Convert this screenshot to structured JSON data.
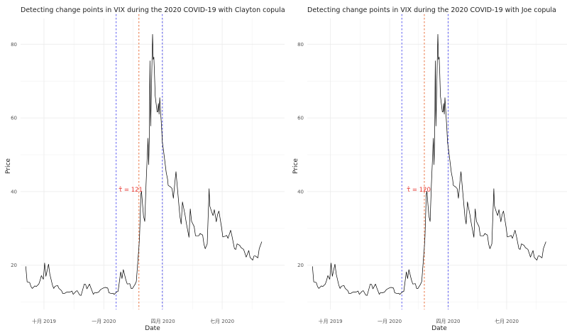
{
  "colors": {
    "series": "#000000",
    "change_point_blue": "#4a4af0",
    "change_point_orange": "#e8642c",
    "annotation": "#e6352f",
    "grid": "#ebebeb"
  },
  "chart_data": [
    {
      "type": "line",
      "title": "Detecting change points in VIX during the 2020 COVID-19 with Clayton copula",
      "xlabel": "Date",
      "ylabel": "Price",
      "annotation": "τ̂ = 121",
      "ylim": [
        8,
        87
      ],
      "y_ticks": [
        20,
        40,
        60,
        80
      ],
      "x_ticks": [
        {
          "date": "2019-10-01",
          "label": "十月 2019"
        },
        {
          "date": "2020-01-01",
          "label": "一月 2020"
        },
        {
          "date": "2020-04-01",
          "label": "四月 2020"
        },
        {
          "date": "2020-07-01",
          "label": "七月 2020"
        }
      ],
      "xlim": [
        "2019-08-26",
        "2020-10-05"
      ],
      "change_points": [
        {
          "date": "2020-01-20",
          "style": "blue"
        },
        {
          "date": "2020-02-24",
          "style": "orange"
        },
        {
          "date": "2020-03-31",
          "style": "blue"
        }
      ],
      "series_ref": "vix",
      "grid": true
    },
    {
      "type": "line",
      "title": "Detecting change points in VIX during the 2020 COVID-19 with Joe copula",
      "xlabel": "Date",
      "ylabel": "Price",
      "annotation": "τ̂ = 120",
      "ylim": [
        8,
        87
      ],
      "y_ticks": [
        20,
        40,
        60,
        80
      ],
      "x_ticks": [
        {
          "date": "2019-10-01",
          "label": "十月 2019"
        },
        {
          "date": "2020-01-01",
          "label": "一月 2020"
        },
        {
          "date": "2020-04-01",
          "label": "四月 2020"
        },
        {
          "date": "2020-07-01",
          "label": "七月 2020"
        }
      ],
      "xlim": [
        "2019-08-26",
        "2020-10-05"
      ],
      "change_points": [
        {
          "date": "2020-01-20",
          "style": "blue"
        },
        {
          "date": "2020-02-24",
          "style": "orange"
        },
        {
          "date": "2020-04-01",
          "style": "blue"
        }
      ],
      "series_ref": "vix",
      "grid": true
    }
  ],
  "vix": [
    [
      "2019-09-03",
      19.7
    ],
    [
      "2019-09-05",
      15.5
    ],
    [
      "2019-09-09",
      15.3
    ],
    [
      "2019-09-11",
      14.2
    ],
    [
      "2019-09-13",
      13.7
    ],
    [
      "2019-09-17",
      14.4
    ],
    [
      "2019-09-19",
      14.2
    ],
    [
      "2019-09-23",
      14.9
    ],
    [
      "2019-09-25",
      15.9
    ],
    [
      "2019-09-27",
      17.2
    ],
    [
      "2019-09-30",
      16.2
    ],
    [
      "2019-10-02",
      20.6
    ],
    [
      "2019-10-04",
      17.0
    ],
    [
      "2019-10-08",
      20.3
    ],
    [
      "2019-10-10",
      17.6
    ],
    [
      "2019-10-14",
      14.6
    ],
    [
      "2019-10-16",
      13.7
    ],
    [
      "2019-10-18",
      14.3
    ],
    [
      "2019-10-22",
      14.5
    ],
    [
      "2019-10-24",
      13.7
    ],
    [
      "2019-10-28",
      13.1
    ],
    [
      "2019-10-30",
      12.3
    ],
    [
      "2019-11-01",
      12.3
    ],
    [
      "2019-11-05",
      12.7
    ],
    [
      "2019-11-07",
      12.7
    ],
    [
      "2019-11-11",
      12.8
    ],
    [
      "2019-11-13",
      13.0
    ],
    [
      "2019-11-15",
      12.1
    ],
    [
      "2019-11-19",
      12.9
    ],
    [
      "2019-11-21",
      13.1
    ],
    [
      "2019-11-25",
      11.9
    ],
    [
      "2019-11-27",
      11.8
    ],
    [
      "2019-12-02",
      14.9
    ],
    [
      "2019-12-04",
      14.8
    ],
    [
      "2019-12-06",
      13.6
    ],
    [
      "2019-12-10",
      14.9
    ],
    [
      "2019-12-12",
      13.9
    ],
    [
      "2019-12-16",
      12.1
    ],
    [
      "2019-12-18",
      12.6
    ],
    [
      "2019-12-20",
      12.5
    ],
    [
      "2019-12-24",
      12.7
    ],
    [
      "2019-12-27",
      13.4
    ],
    [
      "2019-12-31",
      13.8
    ],
    [
      "2020-01-03",
      14.0
    ],
    [
      "2020-01-07",
      13.8
    ],
    [
      "2020-01-09",
      12.5
    ],
    [
      "2020-01-13",
      12.3
    ],
    [
      "2020-01-15",
      12.4
    ],
    [
      "2020-01-17",
      12.1
    ],
    [
      "2020-01-21",
      12.8
    ],
    [
      "2020-01-23",
      12.9
    ],
    [
      "2020-01-27",
      18.2
    ],
    [
      "2020-01-29",
      16.4
    ],
    [
      "2020-01-31",
      18.8
    ],
    [
      "2020-02-04",
      16.0
    ],
    [
      "2020-02-06",
      14.9
    ],
    [
      "2020-02-10",
      15.0
    ],
    [
      "2020-02-12",
      13.7
    ],
    [
      "2020-02-14",
      13.7
    ],
    [
      "2020-02-18",
      14.8
    ],
    [
      "2020-02-20",
      15.6
    ],
    [
      "2020-02-24",
      25.0
    ],
    [
      "2020-02-25",
      27.9
    ],
    [
      "2020-02-27",
      39.2
    ],
    [
      "2020-02-28",
      40.1
    ],
    [
      "2020-03-02",
      33.4
    ],
    [
      "2020-03-04",
      31.9
    ],
    [
      "2020-03-06",
      41.9
    ],
    [
      "2020-03-09",
      54.5
    ],
    [
      "2020-03-10",
      47.3
    ],
    [
      "2020-03-11",
      53.9
    ],
    [
      "2020-03-12",
      75.5
    ],
    [
      "2020-03-13",
      57.8
    ],
    [
      "2020-03-16",
      82.7
    ],
    [
      "2020-03-17",
      75.9
    ],
    [
      "2020-03-18",
      76.5
    ],
    [
      "2020-03-19",
      72.0
    ],
    [
      "2020-03-20",
      66.0
    ],
    [
      "2020-03-23",
      61.6
    ],
    [
      "2020-03-24",
      61.7
    ],
    [
      "2020-03-25",
      63.9
    ],
    [
      "2020-03-26",
      61.0
    ],
    [
      "2020-03-27",
      65.5
    ],
    [
      "2020-03-30",
      57.1
    ],
    [
      "2020-03-31",
      53.5
    ],
    [
      "2020-04-02",
      50.9
    ],
    [
      "2020-04-06",
      45.2
    ],
    [
      "2020-04-08",
      43.4
    ],
    [
      "2020-04-09",
      41.7
    ],
    [
      "2020-04-13",
      41.2
    ],
    [
      "2020-04-15",
      40.8
    ],
    [
      "2020-04-17",
      38.2
    ],
    [
      "2020-04-20",
      43.8
    ],
    [
      "2020-04-21",
      45.4
    ],
    [
      "2020-04-23",
      41.4
    ],
    [
      "2020-04-27",
      33.3
    ],
    [
      "2020-04-29",
      31.2
    ],
    [
      "2020-05-01",
      37.2
    ],
    [
      "2020-05-05",
      33.6
    ],
    [
      "2020-05-07",
      31.4
    ],
    [
      "2020-05-11",
      27.6
    ],
    [
      "2020-05-13",
      35.3
    ],
    [
      "2020-05-15",
      31.9
    ],
    [
      "2020-05-19",
      30.5
    ],
    [
      "2020-05-21",
      28.0
    ],
    [
      "2020-05-26",
      28.0
    ],
    [
      "2020-05-28",
      28.6
    ],
    [
      "2020-06-01",
      28.2
    ],
    [
      "2020-06-03",
      25.7
    ],
    [
      "2020-06-05",
      24.5
    ],
    [
      "2020-06-08",
      25.8
    ],
    [
      "2020-06-11",
      40.8
    ],
    [
      "2020-06-12",
      36.1
    ],
    [
      "2020-06-15",
      34.4
    ],
    [
      "2020-06-17",
      33.5
    ],
    [
      "2020-06-19",
      35.1
    ],
    [
      "2020-06-22",
      31.8
    ],
    [
      "2020-06-24",
      33.8
    ],
    [
      "2020-06-26",
      34.7
    ],
    [
      "2020-06-30",
      30.4
    ],
    [
      "2020-07-02",
      27.7
    ],
    [
      "2020-07-06",
      27.9
    ],
    [
      "2020-07-08",
      28.1
    ],
    [
      "2020-07-10",
      27.3
    ],
    [
      "2020-07-14",
      29.5
    ],
    [
      "2020-07-16",
      28.0
    ],
    [
      "2020-07-20",
      24.5
    ],
    [
      "2020-07-22",
      24.3
    ],
    [
      "2020-07-24",
      25.8
    ],
    [
      "2020-07-28",
      25.4
    ],
    [
      "2020-07-30",
      24.8
    ],
    [
      "2020-08-03",
      24.3
    ],
    [
      "2020-08-05",
      23.3
    ],
    [
      "2020-08-07",
      22.2
    ],
    [
      "2020-08-11",
      24.0
    ],
    [
      "2020-08-13",
      22.1
    ],
    [
      "2020-08-17",
      21.4
    ],
    [
      "2020-08-19",
      22.5
    ],
    [
      "2020-08-21",
      22.5
    ],
    [
      "2020-08-25",
      22.0
    ],
    [
      "2020-08-27",
      24.5
    ],
    [
      "2020-08-31",
      26.4
    ]
  ]
}
